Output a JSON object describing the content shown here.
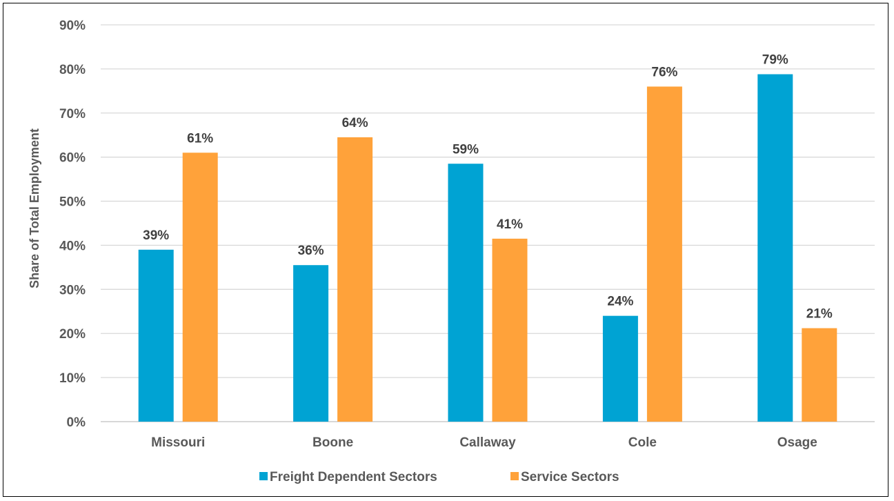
{
  "chart_data": {
    "type": "bar",
    "title": "",
    "xlabel": "",
    "ylabel": "Share of Total Employment",
    "ylim": [
      0,
      90
    ],
    "yticks": [
      0,
      10,
      20,
      30,
      40,
      50,
      60,
      70,
      80,
      90
    ],
    "ytick_labels": [
      "0%",
      "10%",
      "20%",
      "30%",
      "40%",
      "50%",
      "60%",
      "70%",
      "80%",
      "90%"
    ],
    "categories": [
      "Missouri",
      "Boone",
      "Callaway",
      "Cole",
      "Osage"
    ],
    "series": [
      {
        "name": "Freight Dependent Sectors",
        "color": "#00A3D3",
        "values": [
          39,
          35.5,
          58.5,
          24,
          78.8
        ],
        "labels": [
          "39%",
          "36%",
          "59%",
          "24%",
          "79%"
        ]
      },
      {
        "name": "Service Sectors",
        "color": "#FFA23A",
        "values": [
          61,
          64.5,
          41.5,
          76,
          21.2
        ],
        "labels": [
          "61%",
          "64%",
          "41%",
          "76%",
          "21%"
        ]
      }
    ],
    "grid": true,
    "legend_position": "bottom"
  }
}
